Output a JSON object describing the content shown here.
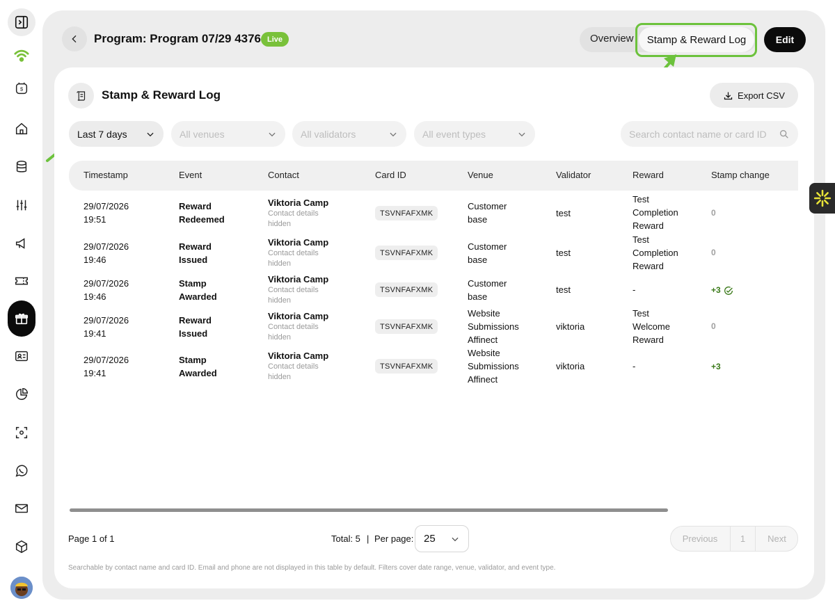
{
  "program": {
    "title": "Program: Program 07/29 4376",
    "status_badge": "Live"
  },
  "tabs": {
    "overview": "Overview",
    "log": "Stamp & Reward Log",
    "edit": "Edit"
  },
  "section": {
    "title": "Stamp & Reward Log",
    "export_label": "Export CSV"
  },
  "filters": {
    "date": "Last 7 days",
    "venues": "All venues",
    "validators": "All validators",
    "event_types": "All event types",
    "search_placeholder": "Search contact name or card ID"
  },
  "table": {
    "headers": [
      "Timestamp",
      "Event",
      "Contact",
      "Card ID",
      "Venue",
      "Validator",
      "Reward",
      "Stamp change"
    ],
    "rows": [
      {
        "ts1": "29/07/2026",
        "ts2": "19:51",
        "ev1": "Reward",
        "ev2": "Redeemed",
        "name": "Viktoria Camp",
        "sub1": "Contact details",
        "sub2": "hidden",
        "card": "TSVNFAFXMK",
        "venue1": "Customer",
        "venue2": "base",
        "venue3": "",
        "validator": "test",
        "rw1": "Test",
        "rw2": "Completion",
        "rw3": "Reward",
        "change": "0"
      },
      {
        "ts1": "29/07/2026",
        "ts2": "19:46",
        "ev1": "Reward",
        "ev2": "Issued",
        "name": "Viktoria Camp",
        "sub1": "Contact details",
        "sub2": "hidden",
        "card": "TSVNFAFXMK",
        "venue1": "Customer",
        "venue2": "base",
        "venue3": "",
        "validator": "test",
        "rw1": "Test",
        "rw2": "Completion",
        "rw3": "Reward",
        "change": "0"
      },
      {
        "ts1": "29/07/2026",
        "ts2": "19:46",
        "ev1": "Stamp",
        "ev2": "Awarded",
        "name": "Viktoria Camp",
        "sub1": "Contact details",
        "sub2": "hidden",
        "card": "TSVNFAFXMK",
        "venue1": "Customer",
        "venue2": "base",
        "venue3": "",
        "validator": "test",
        "rw1": "-",
        "rw2": "",
        "rw3": "",
        "change": "+3"
      },
      {
        "ts1": "29/07/2026",
        "ts2": "19:41",
        "ev1": "Reward",
        "ev2": "Issued",
        "name": "Viktoria Camp",
        "sub1": "Contact details",
        "sub2": "hidden",
        "card": "TSVNFAFXMK",
        "venue1": "Website",
        "venue2": "Submissions",
        "venue3": "Affinect",
        "validator": "viktoria",
        "rw1": "Test",
        "rw2": "Welcome",
        "rw3": "Reward",
        "change": "0"
      },
      {
        "ts1": "29/07/2026",
        "ts2": "19:41",
        "ev1": "Stamp",
        "ev2": "Awarded",
        "name": "Viktoria Camp",
        "sub1": "Contact details",
        "sub2": "hidden",
        "card": "TSVNFAFXMK",
        "venue1": "Website",
        "venue2": "Submissions",
        "venue3": "Affinect",
        "validator": "viktoria",
        "rw1": "-",
        "rw2": "",
        "rw3": "",
        "change": "+3"
      }
    ]
  },
  "pagination": {
    "page_of": "Page 1 of 1",
    "total": "Total: 5",
    "separator": "|",
    "per_page_label": "Per page:",
    "per_page_value": "25",
    "previous": "Previous",
    "current": "1",
    "next": "Next"
  },
  "footnote": "Searchable by contact name and card ID. Email and phone are not displayed in this table by default. Filters cover date range, venue, validator, and event type.",
  "colors": {
    "accent_green": "#79c13a",
    "highlight_green": "#6cc23c",
    "positive_change": "#3b7a1a",
    "widget_yellow": "#e8e337"
  },
  "sidebar_icons": [
    "sidebar-toggle-icon",
    "wifi-logo-icon",
    "billing-icon",
    "home-icon",
    "database-icon",
    "sliders-icon",
    "megaphone-icon",
    "ticket-icon",
    "gift-icon",
    "id-card-icon",
    "pie-chart-icon",
    "scan-icon",
    "whatsapp-icon",
    "mail-icon",
    "cube-icon"
  ]
}
